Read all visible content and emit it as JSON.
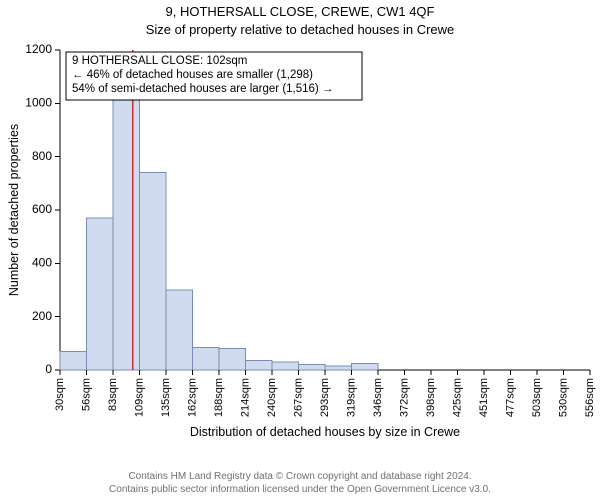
{
  "title_main": "9, HOTHERSALL CLOSE, CREWE, CW1 4QF",
  "title_sub": "Size of property relative to detached houses in Crewe",
  "y_axis_label": "Number of detached properties",
  "x_axis_label": "Distribution of detached houses by size in Crewe",
  "chart": {
    "type": "histogram",
    "background_color": "#ffffff",
    "bar_fill": "#d0dbef",
    "bar_stroke": "#7a8db0",
    "axis_color": "#000000",
    "marker_color": "#d02a2a",
    "x_labels": [
      "30sqm",
      "56sqm",
      "83sqm",
      "109sqm",
      "135sqm",
      "162sqm",
      "188sqm",
      "214sqm",
      "240sqm",
      "267sqm",
      "293sqm",
      "319sqm",
      "346sqm",
      "372sqm",
      "398sqm",
      "425sqm",
      "451sqm",
      "477sqm",
      "503sqm",
      "530sqm",
      "556sqm"
    ],
    "values": [
      70,
      570,
      1080,
      740,
      300,
      85,
      80,
      35,
      30,
      20,
      15,
      25,
      0,
      0,
      0,
      0,
      0,
      0,
      0,
      0
    ],
    "y_ticks": [
      0,
      200,
      400,
      600,
      800,
      1000,
      1200
    ],
    "marker_value_sqm": 102,
    "x_range_sqm": [
      30,
      556
    ]
  },
  "info_box": {
    "line1": "9 HOTHERSALL CLOSE: 102sqm",
    "line2": "← 46% of detached houses are smaller (1,298)",
    "line3": "54% of semi-detached houses are larger (1,516) →",
    "border_color": "#000000",
    "bg_color": "#ffffff",
    "font_size": 11.5
  },
  "attribution": {
    "line1": "Contains HM Land Registry data © Crown copyright and database right 2024.",
    "line2": "Contains public sector information licensed under the Open Government Licence v3.0.",
    "color": "#707070",
    "font_size": 10
  }
}
